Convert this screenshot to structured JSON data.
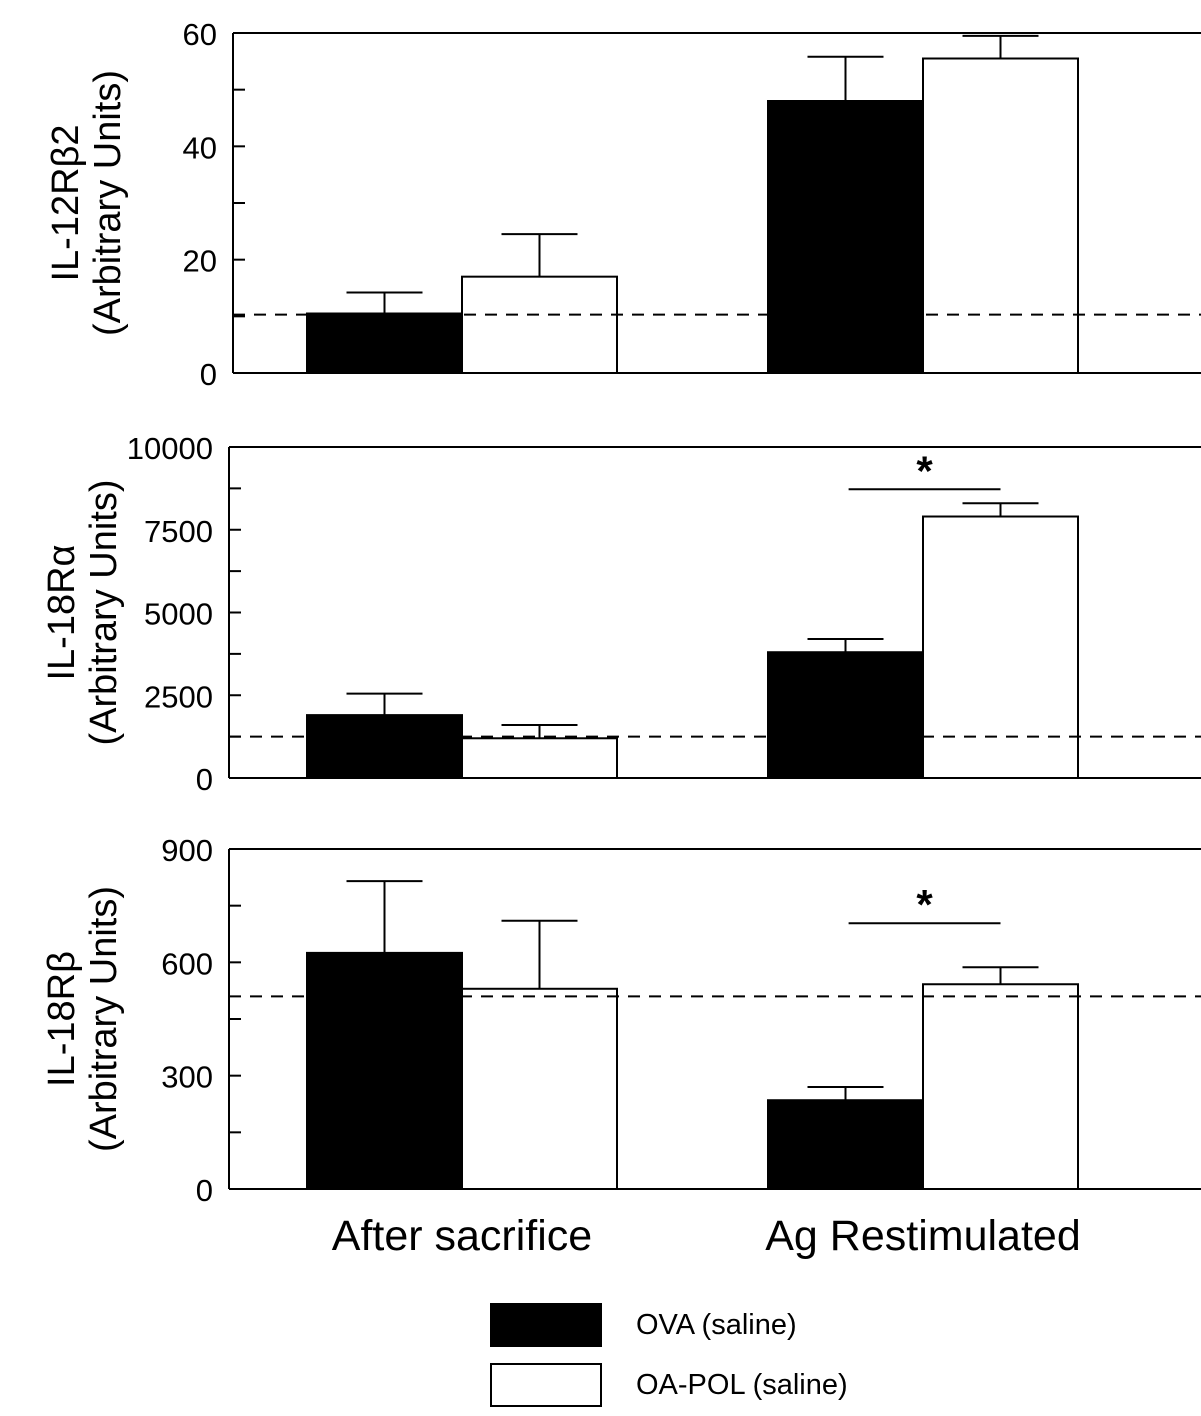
{
  "chart_data": {
    "type": "bar",
    "categories": [
      "After sacrifice",
      "Ag Restimulated"
    ],
    "legend": [
      {
        "name": "OVA (saline)",
        "color": "#000000"
      },
      {
        "name": "OA-POL (saline)",
        "color": "#ffffff"
      }
    ],
    "panels": [
      {
        "ylabel_line1": "IL-12Rβ2",
        "ylabel_line2": "(Arbitrary Units)",
        "ylim": [
          0,
          60
        ],
        "yticks": [
          "0",
          "20",
          "40",
          "60"
        ],
        "baseline": 10.3,
        "series": [
          {
            "name": "OVA (saline)",
            "values": [
              10.5,
              48
            ],
            "errors": [
              3.7,
              7.8
            ]
          },
          {
            "name": "OA-POL (saline)",
            "values": [
              17,
              55.5
            ],
            "errors": [
              7.5,
              4
            ]
          }
        ],
        "significance": []
      },
      {
        "ylabel_line1": "IL-18Rα",
        "ylabel_line2": "(Arbitrary Units)",
        "ylim": [
          0,
          10000
        ],
        "yticks": [
          "0",
          "2500",
          "5000",
          "7500",
          "10000"
        ],
        "baseline": 1250,
        "series": [
          {
            "name": "OVA (saline)",
            "values": [
              1900,
              3800
            ],
            "errors": [
              650,
              400
            ]
          },
          {
            "name": "OA-POL (saline)",
            "values": [
              1200,
              7900
            ],
            "errors": [
              400,
              400
            ]
          }
        ],
        "significance": [
          {
            "category": "Ag Restimulated",
            "label": "*"
          }
        ]
      },
      {
        "ylabel_line1": "IL-18Rβ",
        "ylabel_line2": "(Arbitrary Units)",
        "ylim": [
          0,
          900
        ],
        "yticks": [
          "0",
          "300",
          "600",
          "900"
        ],
        "baseline": 510,
        "series": [
          {
            "name": "OVA (saline)",
            "values": [
              625,
              235
            ],
            "errors": [
              190,
              35
            ]
          },
          {
            "name": "OA-POL (saline)",
            "values": [
              530,
              542
            ],
            "errors": [
              180,
              45
            ]
          }
        ],
        "significance": [
          {
            "category": "Ag Restimulated",
            "label": "*"
          }
        ]
      }
    ]
  }
}
